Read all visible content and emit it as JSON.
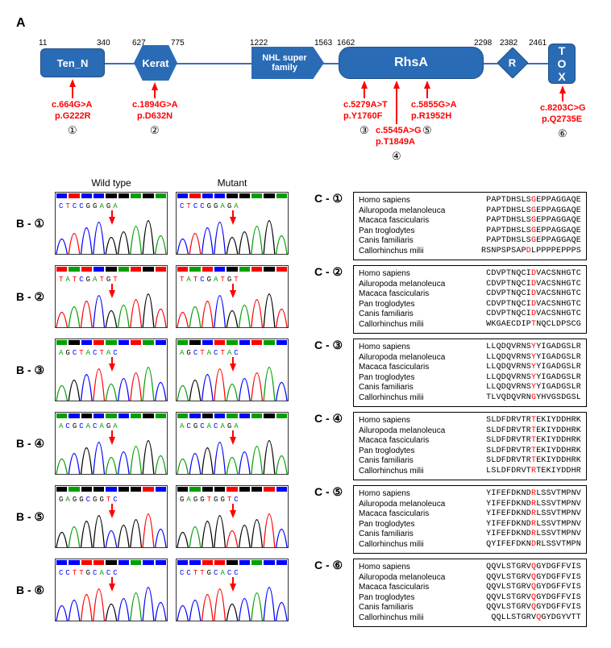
{
  "panelA": {
    "label": "A",
    "domains": [
      {
        "name": "Ten_N",
        "start": 11,
        "end": 340,
        "shape": "rect"
      },
      {
        "name": "Kerat",
        "start": 627,
        "end": 775,
        "shape": "hex"
      },
      {
        "name": "NHL super family",
        "start": 1222,
        "end": 1563,
        "shape": "nhl"
      },
      {
        "name": "RhsA",
        "start": 1662,
        "end": 2298,
        "shape": "rhsa"
      },
      {
        "name": "R",
        "start": 2382,
        "end": 2382,
        "shape": "rhomb"
      },
      {
        "name": "TOX",
        "start": 2461,
        "end": 2461,
        "shape": "rect"
      }
    ],
    "mutations": [
      {
        "num": "①",
        "cdna": "c.664G>A",
        "prot": "p.G222R"
      },
      {
        "num": "②",
        "cdna": "c.1894G>A",
        "prot": "p.D632N"
      },
      {
        "num": "③",
        "cdna": "c.5279A>T",
        "prot": "p.Y1760F"
      },
      {
        "num": "④",
        "cdna": "c.5545A>G",
        "prot": "p.T1849A"
      },
      {
        "num": "⑤",
        "cdna": "c.5855G>A",
        "prot": "p.R1952H"
      },
      {
        "num": "⑥",
        "cdna": "c.8203C>G",
        "prot": "p.Q2735E"
      }
    ]
  },
  "headers": {
    "wt": "Wild type",
    "mut": "Mutant"
  },
  "species": [
    "Homo sapiens",
    "Ailuropoda melanoleuca",
    "Macaca fascicularis",
    "Pan troglodytes",
    "Canis familiaris",
    "Callorhinchus milii"
  ],
  "rows": [
    {
      "num": "①",
      "wt_seq": "CTCCGGAGA",
      "mut_seq": "CTCCGGAGA",
      "align": [
        {
          "pre": "PAPTDHSLS",
          "m": "G",
          "post": "EPPAGGAQE"
        },
        {
          "pre": "PAPTDHSLS",
          "m": "G",
          "post": "EPPAGGAQE"
        },
        {
          "pre": "PAPTDHSLS",
          "m": "G",
          "post": "EPPAGGAQE"
        },
        {
          "pre": "PAPTDHSLS",
          "m": "G",
          "post": "EPPAGGAQE"
        },
        {
          "pre": "PAPTDHSLS",
          "m": "G",
          "post": "EPPAGGAQE"
        },
        {
          "pre": "RSNPSPSAP",
          "m": "D",
          "post": "LPPPPEPPPS"
        }
      ]
    },
    {
      "num": "②",
      "wt_seq": "TATCGATGT",
      "mut_seq": "TATCGATGT",
      "align": [
        {
          "pre": "CDVPTNQCI",
          "m": "D",
          "post": "VACSNHGTC"
        },
        {
          "pre": "CDVPTNQCI",
          "m": "D",
          "post": "VACSNHGTC"
        },
        {
          "pre": "CDVPTNQCI",
          "m": "D",
          "post": "VACSNHGTC"
        },
        {
          "pre": "CDVPTNQCI",
          "m": "D",
          "post": "VACSNHGTC"
        },
        {
          "pre": "CDVPTNQCI",
          "m": "D",
          "post": "VACSNHGTC"
        },
        {
          "pre": "WKGAECDIP",
          "m": "T",
          "post": "NQCLDPSCG"
        }
      ]
    },
    {
      "num": "③",
      "wt_seq": "AGCTACTAC",
      "mut_seq": "AGCTACTAC",
      "align": [
        {
          "pre": "LLQDQVRNS",
          "m": "Y",
          "post": "YIGADGSLR"
        },
        {
          "pre": "LLQDQVRNS",
          "m": "Y",
          "post": "YIGADGSLR"
        },
        {
          "pre": "LLQDQVRNS",
          "m": "Y",
          "post": "YIGADGSLR"
        },
        {
          "pre": "LLQDQVRNS",
          "m": "Y",
          "post": "YIGADGSLR"
        },
        {
          "pre": "LLQDQVRNS",
          "m": "Y",
          "post": "YIGADGSLR"
        },
        {
          "pre": "TLVQDQVRN",
          "m": "G",
          "post": "YHVGSDGSL"
        }
      ]
    },
    {
      "num": "④",
      "wt_seq": "ACGCACAGA",
      "mut_seq": "ACGCACAGA",
      "align": [
        {
          "pre": "SLDFDRVTR",
          "m": "T",
          "post": "EKIYDDHRK"
        },
        {
          "pre": "SLDFDRVTR",
          "m": "T",
          "post": "EKIYDDHRK"
        },
        {
          "pre": "SLDFDRVTR",
          "m": "T",
          "post": "EKIYDDHRK"
        },
        {
          "pre": "SLDFDRVTR",
          "m": "T",
          "post": "EKIYDDHRK"
        },
        {
          "pre": "SLDFDRVTR",
          "m": "T",
          "post": "EKIYDDHRK"
        },
        {
          "pre": "LSLDFDRVT",
          "m": "R",
          "post": "TEKIYDDHR"
        }
      ]
    },
    {
      "num": "⑤",
      "wt_seq": "GAGGCGGTC",
      "mut_seq": "GAGGTGGTC",
      "align": [
        {
          "pre": "YIFEFDKND",
          "m": "R",
          "post": "LSSVTMPNV"
        },
        {
          "pre": "YIFEFDKND",
          "m": "R",
          "post": "LSSVTMPNV"
        },
        {
          "pre": "YIFEFDKND",
          "m": "R",
          "post": "LSSVTMPNV"
        },
        {
          "pre": "YIFEFDKND",
          "m": "R",
          "post": "LSSVTMPNV"
        },
        {
          "pre": "YIFEFDKND",
          "m": "R",
          "post": "LSSVTMPNV"
        },
        {
          "pre": "QYIFEFDKN",
          "m": "D",
          "post": "RLSSVTMPN"
        }
      ]
    },
    {
      "num": "⑥",
      "wt_seq": "CCTTGCACC",
      "mut_seq": "CCTTGCACC",
      "align": [
        {
          "pre": "QQVLSTGRV",
          "m": "Q",
          "post": "GYDGFFVIS"
        },
        {
          "pre": "QQVLSTGRV",
          "m": "Q",
          "post": "GYDGFFVIS"
        },
        {
          "pre": "QQVLSTGRV",
          "m": "Q",
          "post": "GYDGFFVIS"
        },
        {
          "pre": "QQVLSTGRV",
          "m": "Q",
          "post": "GYDGFFVIS"
        },
        {
          "pre": "QQVLSTGRV",
          "m": "Q",
          "post": "GYDGFFVIS"
        },
        {
          "pre": "QQLLSTGRV",
          "m": "Q",
          "post": "GYDGYVTT"
        }
      ]
    }
  ],
  "colors": {
    "domain_fill": "#2a6bb5",
    "mutation": "#ff0000",
    "peaks": {
      "A": "#00a000",
      "C": "#0000ff",
      "G": "#000000",
      "T": "#ff0000"
    }
  }
}
